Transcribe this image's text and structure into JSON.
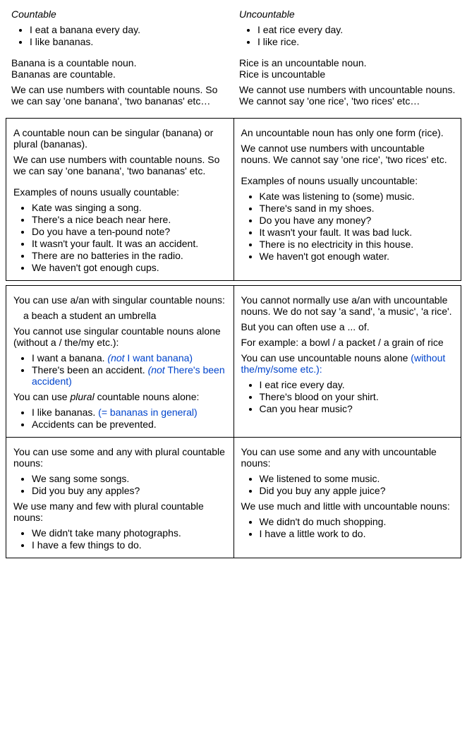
{
  "top": {
    "countable": {
      "heading": "Countable",
      "bullets": [
        "I eat a banana every day.",
        "I like bananas."
      ],
      "p1a": "Banana is a countable noun.",
      "p1b": "Bananas are countable.",
      "p2": "We can use numbers with countable nouns. So we can say 'one banana', 'two bananas' etc…"
    },
    "uncountable": {
      "heading": "Uncountable",
      "bullets": [
        "I eat rice every day.",
        "I like rice."
      ],
      "p1a": "Rice is an uncountable noun.",
      "p1b": "Rice is uncountable",
      "p2": "We cannot use numbers with uncountable nouns. We cannot say 'one rice', 'two rices' etc…"
    }
  },
  "box1": {
    "left": {
      "p1": "A countable noun can be singular (banana) or plural (bananas).",
      "p2": "We can use numbers with countable nouns. So we can say 'one banana', 'two bananas' etc.",
      "p3": "Examples of nouns usually countable:",
      "examples": [
        "Kate was singing a song.",
        "There's a nice beach near here.",
        "Do you have a ten-pound note?",
        "It wasn't your fault. It was an accident.",
        "There are no batteries in the radio.",
        "We haven't got enough cups."
      ]
    },
    "right": {
      "p1": "An uncountable noun has only one form (rice).",
      "p2": "We cannot use numbers with uncountable nouns. We cannot say 'one rice', 'two rices' etc.",
      "p3": "Examples of nouns usually uncountable:",
      "examples": [
        "Kate was listening to (some) music.",
        "There's sand in my shoes.",
        "Do you have any money?",
        "It wasn't your fault. It was bad luck.",
        "There is no electricity in this house.",
        "We haven't got enough water."
      ]
    }
  },
  "box2": {
    "row1": {
      "left": {
        "p1": "You can use a/an with singular countable nouns:",
        "indent1": "a beach  a student  an umbrella",
        "p2": "You cannot use singular countable nouns alone (without a / the/my etc.):",
        "b1_text": "I want a banana. ",
        "b1_note": "(not",
        "b1_note2": " I want banana)",
        "b2_text": "There's been an accident. ",
        "b2_note": "(not",
        "b2_note2": " There's been accident)",
        "p3a": "You can use ",
        "p3b": "plural",
        "p3c": " countable nouns alone:",
        "b3_text": "I like bananas. ",
        "b3_note": "(= bananas in general)",
        "b4_text": "Accidents can be prevented."
      },
      "right": {
        "p1": "You cannot normally use a/an with uncountable nouns. We do not say 'a sand', 'a music', 'a rice'.",
        "p2": "But you can often use a ... of.",
        "p3": "For example: a bowl / a packet / a grain of rice",
        "p4a": "You can use uncountable nouns alone ",
        "p4b": "(without the/my/some etc.):",
        "examples": [
          "I eat rice every day.",
          "There's blood on your shirt.",
          "Can you hear music?"
        ]
      }
    },
    "row2": {
      "left": {
        "p1": "You can use some and any with plural countable nouns:",
        "ex1": [
          "We sang some songs.",
          "Did you buy any apples?"
        ],
        "p2": "We use many and few with plural countable nouns:",
        "ex2": [
          "We didn't take many photographs.",
          "I have a few things to do."
        ]
      },
      "right": {
        "p1": "You can use some and any with uncountable nouns:",
        "ex1": [
          "We listened to some music.",
          "Did you buy any apple juice?"
        ],
        "p2": "We use much and little with uncountable nouns:",
        "ex2": [
          "We didn't do much shopping.",
          "I have a little work to do."
        ]
      }
    }
  }
}
